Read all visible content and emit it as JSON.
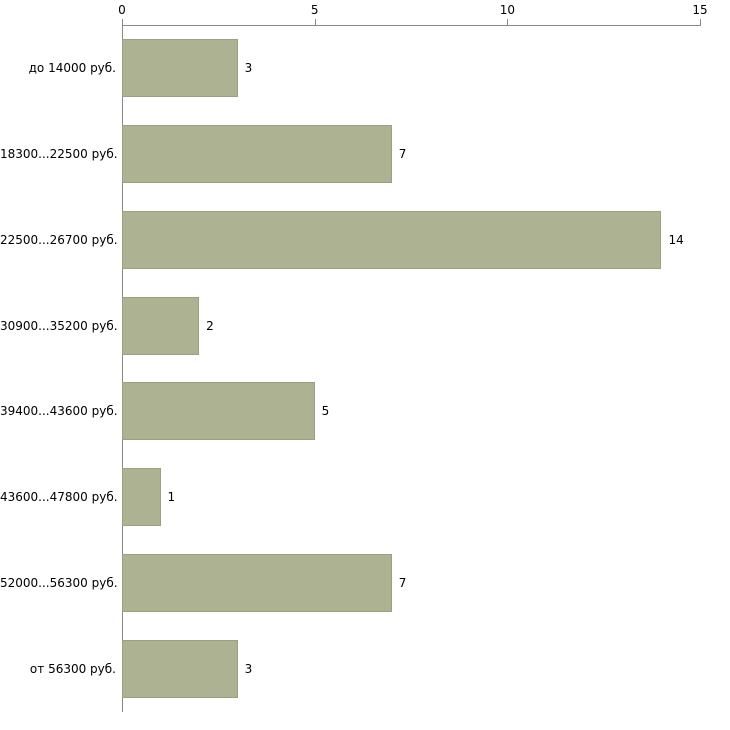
{
  "chart_data": {
    "type": "bar",
    "orientation": "horizontal",
    "title": "",
    "xlabel": "",
    "ylabel": "",
    "categories": [
      "до 14000 руб.",
      "18300...22500 руб.",
      "22500...26700 руб.",
      "30900...35200 руб.",
      "39400...43600 руб.",
      "43600...47800 руб.",
      "52000...56300 руб.",
      "от 56300 руб."
    ],
    "values": [
      3,
      7,
      14,
      2,
      5,
      1,
      7,
      3
    ],
    "xlim": [
      0,
      15
    ],
    "x_ticks": [
      0,
      5,
      10,
      15
    ],
    "grid": false,
    "legend_position": "none",
    "bar_color": "#adb293",
    "bar_border_color": "#9ba081",
    "axis_color": "#888888",
    "label_color": "#000000",
    "background_color": "#ffffff"
  }
}
